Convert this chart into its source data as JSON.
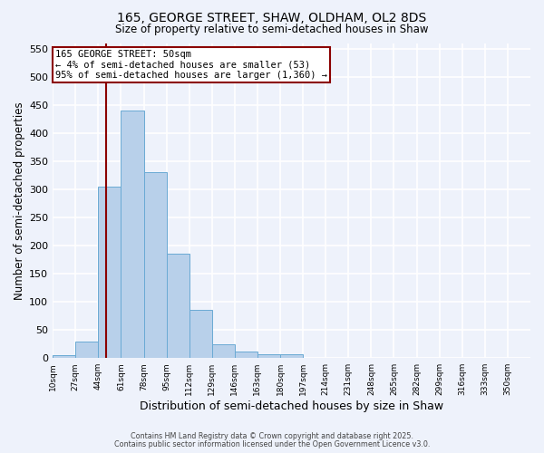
{
  "title": "165, GEORGE STREET, SHAW, OLDHAM, OL2 8DS",
  "subtitle": "Size of property relative to semi-detached houses in Shaw",
  "xlabel": "Distribution of semi-detached houses by size in Shaw",
  "ylabel": "Number of semi-detached properties",
  "bin_starts": [
    10,
    27,
    44,
    61,
    78,
    95,
    112,
    129,
    146,
    163,
    180,
    197,
    214,
    231,
    248,
    265,
    282,
    299,
    316,
    333
  ],
  "bin_width": 17,
  "bar_heights": [
    5,
    30,
    305,
    440,
    330,
    185,
    85,
    25,
    12,
    7,
    7,
    0,
    0,
    0,
    0,
    0,
    0,
    0,
    0,
    0
  ],
  "bar_color": "#b8d0ea",
  "bar_edge_color": "#6aaad4",
  "background_color": "#eef2fb",
  "grid_color": "#ffffff",
  "ylim": [
    0,
    560
  ],
  "yticks": [
    0,
    50,
    100,
    150,
    200,
    250,
    300,
    350,
    400,
    450,
    500,
    550
  ],
  "xlim_left": 10,
  "xlim_right": 350,
  "red_line_x": 50,
  "tick_labels": [
    "10sqm",
    "27sqm",
    "44sqm",
    "61sqm",
    "78sqm",
    "95sqm",
    "112sqm",
    "129sqm",
    "146sqm",
    "163sqm",
    "180sqm",
    "197sqm",
    "214sqm",
    "231sqm",
    "248sqm",
    "265sqm",
    "282sqm",
    "299sqm",
    "316sqm",
    "333sqm",
    "350sqm"
  ],
  "annotation_title": "165 GEORGE STREET: 50sqm",
  "annotation_line1": "← 4% of semi-detached houses are smaller (53)",
  "annotation_line2": "95% of semi-detached houses are larger (1,360) →",
  "footnote1": "Contains HM Land Registry data © Crown copyright and database right 2025.",
  "footnote2": "Contains public sector information licensed under the Open Government Licence v3.0."
}
